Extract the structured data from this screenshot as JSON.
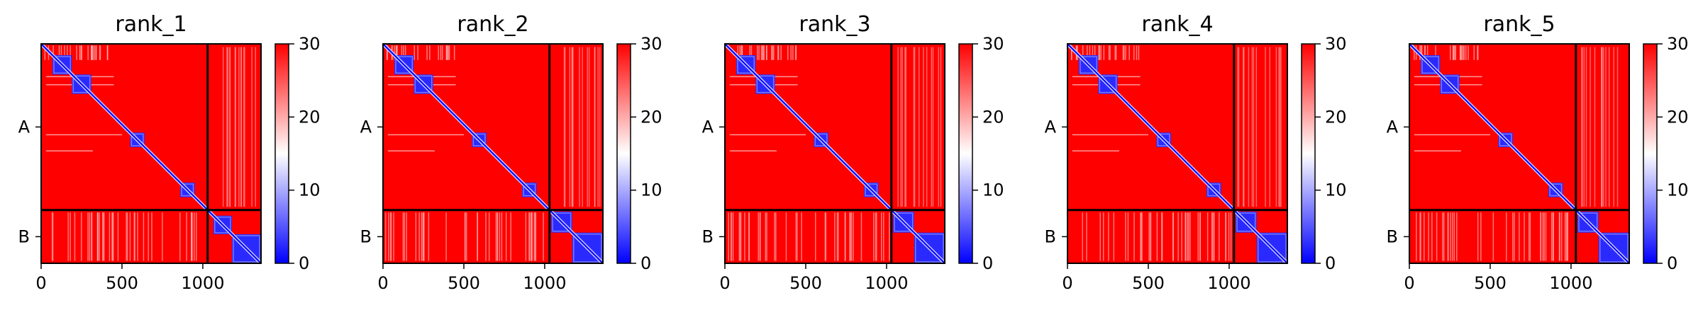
{
  "chart_data": [
    {
      "type": "heatmap",
      "title": "rank_1",
      "x_ticks": [
        0,
        500,
        1000
      ],
      "y_ticks": [
        "A",
        "B"
      ],
      "xlim": [
        0,
        1360
      ],
      "colorbar": {
        "cmap": "bwr",
        "range": [
          0,
          30
        ],
        "ticks": [
          0,
          10,
          20,
          30
        ]
      },
      "segments": {
        "A": [
          0,
          1030
        ],
        "B": [
          1030,
          1360
        ]
      },
      "low_blocks": [
        [
          70,
          190
        ],
        [
          190,
          310
        ],
        [
          550,
          640
        ],
        [
          860,
          950
        ],
        [
          1065,
          1180
        ],
        [
          1180,
          1360
        ]
      ]
    },
    {
      "type": "heatmap",
      "title": "rank_2",
      "x_ticks": [
        0,
        500,
        1000
      ],
      "y_ticks": [
        "A",
        "B"
      ],
      "xlim": [
        0,
        1360
      ],
      "colorbar": {
        "cmap": "bwr",
        "range": [
          0,
          30
        ],
        "ticks": [
          0,
          10,
          20,
          30
        ]
      },
      "segments": {
        "A": [
          0,
          1030
        ],
        "B": [
          1030,
          1360
        ]
      },
      "low_blocks": [
        [
          70,
          190
        ],
        [
          190,
          310
        ],
        [
          550,
          640
        ],
        [
          860,
          950
        ],
        [
          1040,
          1170
        ],
        [
          1170,
          1360
        ]
      ]
    },
    {
      "type": "heatmap",
      "title": "rank_3",
      "x_ticks": [
        0,
        500,
        1000
      ],
      "y_ticks": [
        "A",
        "B"
      ],
      "xlim": [
        0,
        1360
      ],
      "colorbar": {
        "cmap": "bwr",
        "range": [
          0,
          30
        ],
        "ticks": [
          0,
          10,
          20,
          30
        ]
      },
      "segments": {
        "A": [
          0,
          1030
        ],
        "B": [
          1030,
          1360
        ]
      },
      "low_blocks": [
        [
          70,
          190
        ],
        [
          190,
          310
        ],
        [
          550,
          640
        ],
        [
          860,
          950
        ],
        [
          1040,
          1170
        ],
        [
          1170,
          1360
        ]
      ]
    },
    {
      "type": "heatmap",
      "title": "rank_4",
      "x_ticks": [
        0,
        500,
        1000
      ],
      "y_ticks": [
        "A",
        "B"
      ],
      "xlim": [
        0,
        1360
      ],
      "colorbar": {
        "cmap": "bwr",
        "range": [
          0,
          30
        ],
        "ticks": [
          0,
          10,
          20,
          30
        ]
      },
      "segments": {
        "A": [
          0,
          1030
        ],
        "B": [
          1030,
          1360
        ]
      },
      "low_blocks": [
        [
          70,
          190
        ],
        [
          190,
          310
        ],
        [
          550,
          640
        ],
        [
          860,
          950
        ],
        [
          1040,
          1170
        ],
        [
          1170,
          1360
        ]
      ]
    },
    {
      "type": "heatmap",
      "title": "rank_5",
      "x_ticks": [
        0,
        500,
        1000
      ],
      "y_ticks": [
        "A",
        "B"
      ],
      "xlim": [
        0,
        1360
      ],
      "colorbar": {
        "cmap": "bwr",
        "range": [
          0,
          30
        ],
        "ticks": [
          0,
          10,
          20,
          30
        ]
      },
      "segments": {
        "A": [
          0,
          1030
        ],
        "B": [
          1030,
          1360
        ]
      },
      "low_blocks": [
        [
          70,
          190
        ],
        [
          190,
          310
        ],
        [
          550,
          640
        ],
        [
          860,
          950
        ],
        [
          1040,
          1170
        ],
        [
          1170,
          1360
        ]
      ]
    }
  ]
}
